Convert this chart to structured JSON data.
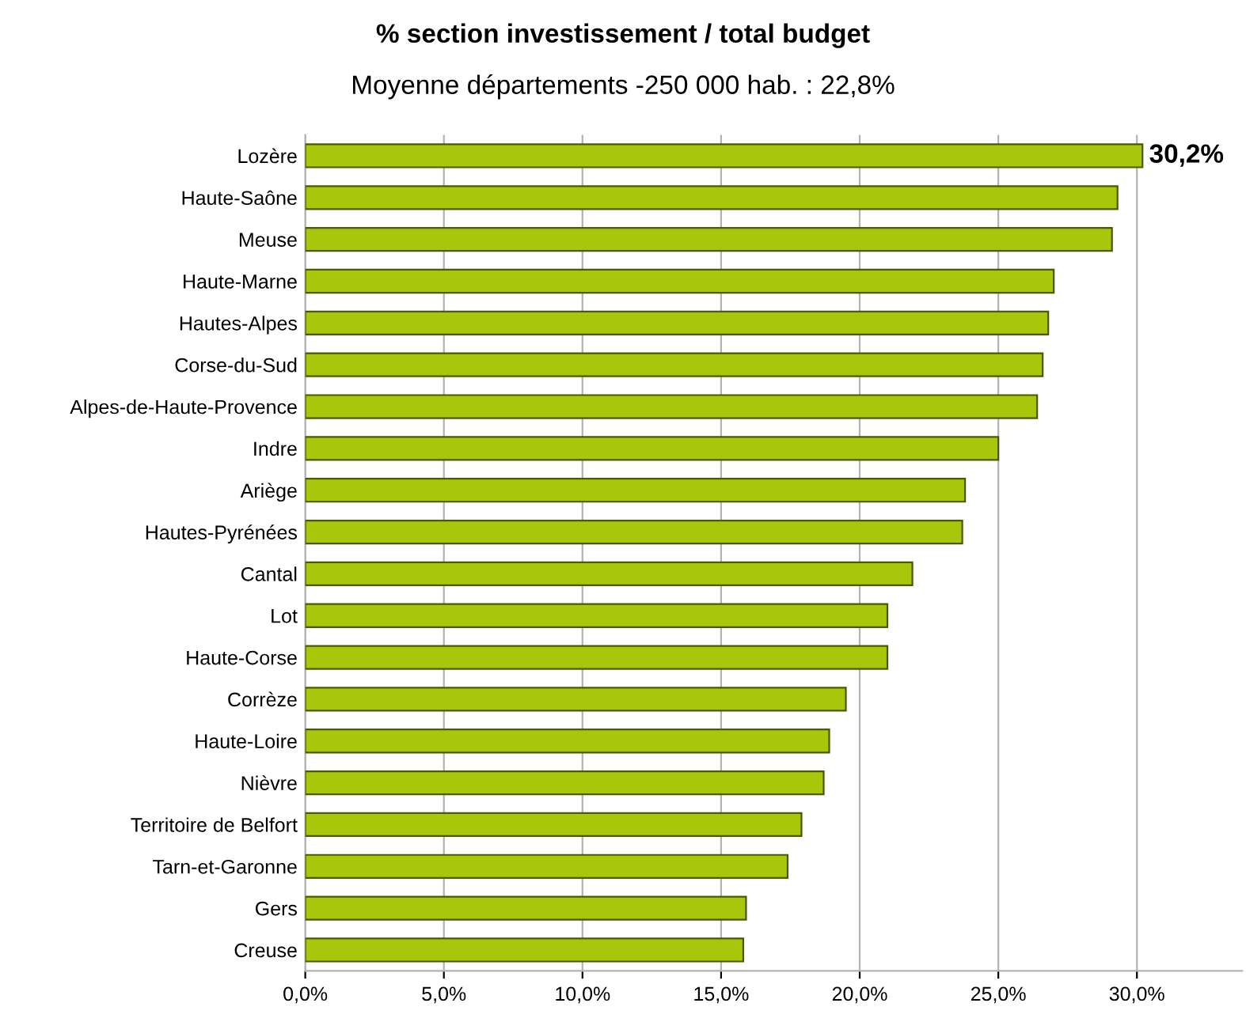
{
  "chart_data": {
    "type": "bar",
    "orientation": "horizontal",
    "title": "% section investissement / total budget",
    "subtitle": "Moyenne départements -250 000 hab. : 22,8%",
    "categories": [
      "Lozère",
      "Haute-Saône",
      "Meuse",
      "Haute-Marne",
      "Hautes-Alpes",
      "Corse-du-Sud",
      "Alpes-de-Haute-Provence",
      "Indre",
      "Ariège",
      "Hautes-Pyrénées",
      "Cantal",
      "Lot",
      "Haute-Corse",
      "Corrèze",
      "Haute-Loire",
      "Nièvre",
      "Territoire de Belfort",
      "Tarn-et-Garonne",
      "Gers",
      "Creuse"
    ],
    "values": [
      30.2,
      29.3,
      29.1,
      27.0,
      26.8,
      26.6,
      26.4,
      25.0,
      23.8,
      23.7,
      21.9,
      21.0,
      21.0,
      19.5,
      18.9,
      18.7,
      17.9,
      17.4,
      15.9,
      15.8
    ],
    "value_labels": [
      "30,2%",
      null,
      null,
      null,
      null,
      null,
      null,
      null,
      null,
      null,
      null,
      null,
      null,
      null,
      null,
      null,
      null,
      null,
      null,
      null
    ],
    "color": "#a8c70a",
    "xlim": [
      0,
      33.8
    ],
    "xticks": [
      {
        "value": 0,
        "label": "0,0%"
      },
      {
        "value": 5,
        "label": "5,0%"
      },
      {
        "value": 10,
        "label": "10,0%"
      },
      {
        "value": 15,
        "label": "15,0%"
      },
      {
        "value": 20,
        "label": "20,0%"
      },
      {
        "value": 25,
        "label": "25,0%"
      },
      {
        "value": 30,
        "label": "30,0%"
      }
    ],
    "grid": "x",
    "legend": false
  }
}
